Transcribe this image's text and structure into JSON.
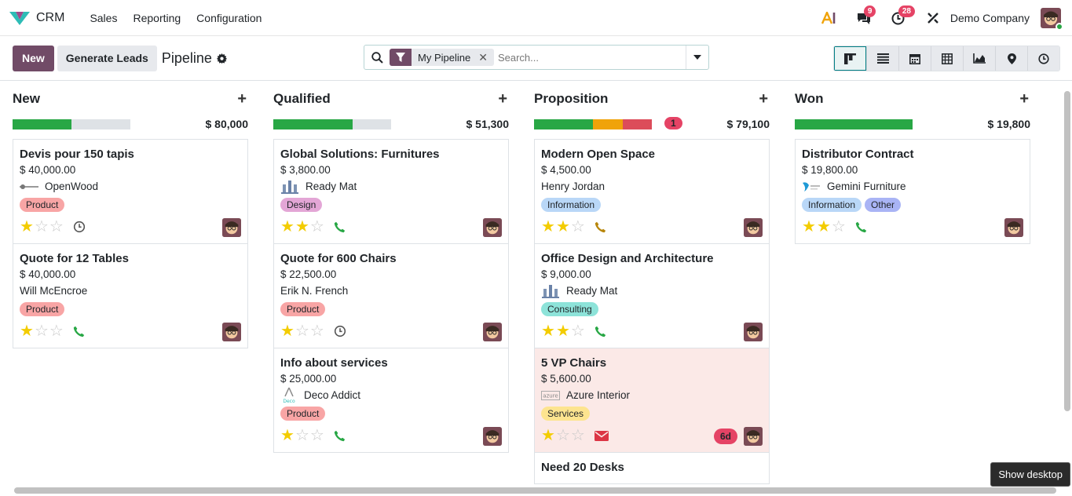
{
  "nav": {
    "app_name": "CRM",
    "menu": [
      "Sales",
      "Reporting",
      "Configuration"
    ],
    "ai_icon": "ai-icon",
    "messages_count": "9",
    "activities_count": "28",
    "company": "Demo Company"
  },
  "control": {
    "new_label": "New",
    "generate_label": "Generate Leads",
    "title": "Pipeline",
    "facet": "My Pipeline",
    "search_placeholder": "Search...",
    "views": [
      "kanban-icon",
      "list-icon",
      "calendar-icon",
      "pivot-icon",
      "graph-icon",
      "map-icon",
      "activity-icon"
    ]
  },
  "columns": [
    {
      "title": "New",
      "total": "$ 80,000",
      "badge": "",
      "bar": [
        {
          "pct": 50,
          "color": "#28a745"
        }
      ],
      "cards": [
        {
          "title": "Devis pour 150 tapis",
          "amount": "$ 40,000.00",
          "contact": "OpenWood",
          "logo": "openwood",
          "tags": [
            {
              "label": "Product",
              "color": "#f8a5a5"
            }
          ],
          "stars": 1,
          "activity": "clock"
        },
        {
          "title": "Quote for 12 Tables",
          "amount": "$ 40,000.00",
          "contact": "Will McEncroe",
          "logo": "",
          "tags": [
            {
              "label": "Product",
              "color": "#f8a5a5"
            }
          ],
          "stars": 1,
          "activity": "phone"
        }
      ]
    },
    {
      "title": "Qualified",
      "total": "$ 51,300",
      "badge": "",
      "bar": [
        {
          "pct": 67,
          "color": "#28a745"
        }
      ],
      "cards": [
        {
          "title": "Global Solutions: Furnitures",
          "amount": "$ 3,800.00",
          "contact": "Ready Mat",
          "logo": "readymat",
          "tags": [
            {
              "label": "Design",
              "color": "#e3a6d6"
            }
          ],
          "stars": 2,
          "activity": "phone"
        },
        {
          "title": "Quote for 600 Chairs",
          "amount": "$ 22,500.00",
          "contact": "Erik N. French",
          "logo": "",
          "tags": [
            {
              "label": "Product",
              "color": "#f8a5a5"
            }
          ],
          "stars": 1,
          "activity": "clock"
        },
        {
          "title": "Info about services",
          "amount": "$ 25,000.00",
          "contact": "Deco Addict",
          "logo": "deco",
          "tags": [
            {
              "label": "Product",
              "color": "#f8a5a5"
            }
          ],
          "stars": 1,
          "activity": "phone"
        }
      ]
    },
    {
      "title": "Proposition",
      "total": "$ 79,100",
      "badge": "1",
      "bar": [
        {
          "pct": 50,
          "color": "#28a745"
        },
        {
          "pct": 25,
          "color": "#f0a30a"
        },
        {
          "pct": 25,
          "color": "#dc4c5a"
        }
      ],
      "cards": [
        {
          "title": "Modern Open Space",
          "amount": "$ 4,500.00",
          "contact": "Henry Jordan",
          "logo": "",
          "tags": [
            {
              "label": "Information",
              "color": "#b9d7f7"
            }
          ],
          "stars": 2,
          "activity": "phone-orange"
        },
        {
          "title": "Office Design and Architecture",
          "amount": "$ 9,000.00",
          "contact": "Ready Mat",
          "logo": "readymat",
          "tags": [
            {
              "label": "Consulting",
              "color": "#8de3d9"
            }
          ],
          "stars": 2,
          "activity": "phone"
        },
        {
          "title": "5 VP Chairs",
          "amount": "$ 5,600.00",
          "contact": "Azure Interior",
          "logo": "azure",
          "tags": [
            {
              "label": "Services",
              "color": "#fde48f"
            }
          ],
          "stars": 1,
          "activity": "mail",
          "late": "6d",
          "red": true
        },
        {
          "title": "Need 20 Desks",
          "amount": "",
          "contact": "",
          "logo": "",
          "tags": [],
          "stars": 0,
          "activity": ""
        }
      ]
    },
    {
      "title": "Won",
      "total": "$ 19,800",
      "badge": "",
      "bar": [
        {
          "pct": 100,
          "color": "#28a745"
        }
      ],
      "cards": [
        {
          "title": "Distributor Contract",
          "amount": "$ 19,800.00",
          "contact": "Gemini Furniture",
          "logo": "gemini",
          "tags": [
            {
              "label": "Information",
              "color": "#b9d7f7"
            },
            {
              "label": "Other",
              "color": "#a9b4f5"
            }
          ],
          "stars": 2,
          "activity": "phone"
        }
      ]
    }
  ],
  "tooltip": "Show desktop"
}
